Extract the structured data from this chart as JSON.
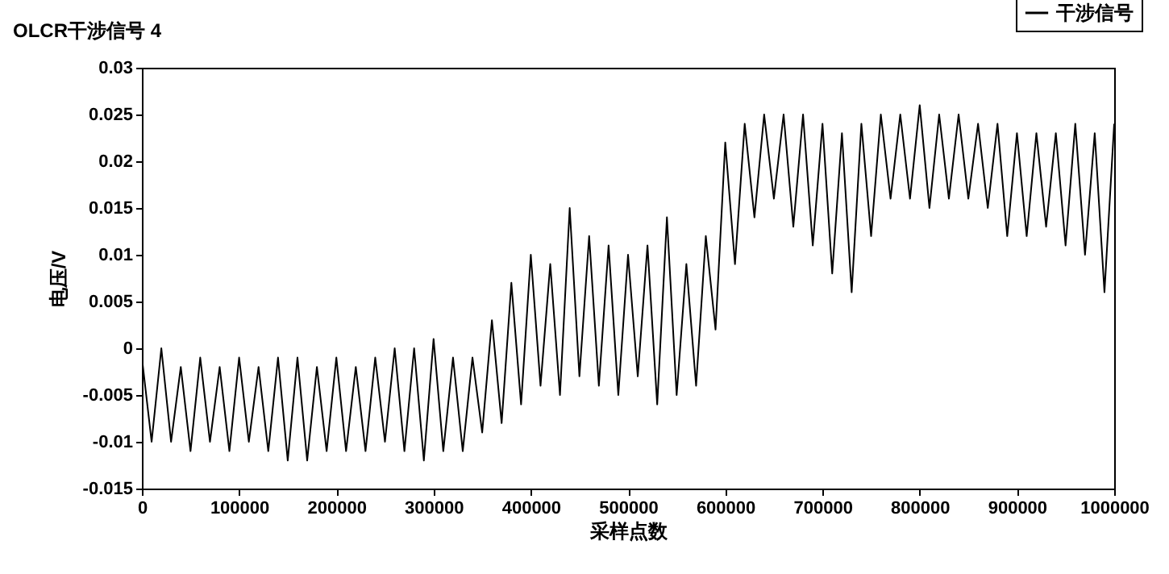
{
  "chart_data": {
    "type": "line",
    "title": "OLCR干涉信号 4",
    "xlabel": "采样点数",
    "ylabel": "电压/V",
    "x": [
      0,
      10000,
      20000,
      30000,
      40000,
      50000,
      60000,
      70000,
      80000,
      90000,
      100000,
      110000,
      120000,
      130000,
      140000,
      150000,
      160000,
      170000,
      180000,
      190000,
      200000,
      210000,
      220000,
      230000,
      240000,
      250000,
      260000,
      270000,
      280000,
      290000,
      300000,
      310000,
      320000,
      330000,
      340000,
      350000,
      360000,
      370000,
      380000,
      390000,
      400000,
      410000,
      420000,
      430000,
      440000,
      450000,
      460000,
      470000,
      480000,
      490000,
      500000,
      510000,
      520000,
      530000,
      540000,
      550000,
      560000,
      570000,
      580000,
      590000,
      600000,
      610000,
      620000,
      630000,
      640000,
      650000,
      660000,
      670000,
      680000,
      690000,
      700000,
      710000,
      720000,
      730000,
      740000,
      750000,
      760000,
      770000,
      780000,
      790000,
      800000,
      810000,
      820000,
      830000,
      840000,
      850000,
      860000,
      870000,
      880000,
      890000,
      900000,
      910000,
      920000,
      930000,
      940000,
      950000,
      960000,
      970000,
      980000,
      990000,
      1000000
    ],
    "series": [
      {
        "name": "干涉信号",
        "color": "#000000",
        "values": [
          -0.001,
          -0.01,
          0.0,
          -0.01,
          -0.002,
          -0.011,
          -0.001,
          -0.01,
          -0.002,
          -0.011,
          -0.001,
          -0.01,
          -0.002,
          -0.011,
          -0.001,
          -0.012,
          -0.001,
          -0.012,
          -0.002,
          -0.011,
          -0.001,
          -0.011,
          -0.002,
          -0.011,
          -0.001,
          -0.01,
          0.0,
          -0.011,
          0.0,
          -0.012,
          0.001,
          -0.011,
          -0.001,
          -0.011,
          -0.001,
          -0.009,
          0.003,
          -0.008,
          0.007,
          -0.006,
          0.01,
          -0.004,
          0.009,
          -0.005,
          0.015,
          -0.003,
          0.012,
          -0.004,
          0.011,
          -0.005,
          0.01,
          -0.003,
          0.011,
          -0.006,
          0.014,
          -0.005,
          0.009,
          -0.004,
          0.012,
          0.002,
          0.022,
          0.009,
          0.024,
          0.014,
          0.025,
          0.016,
          0.025,
          0.013,
          0.025,
          0.011,
          0.024,
          0.008,
          0.023,
          0.006,
          0.024,
          0.012,
          0.025,
          0.016,
          0.025,
          0.016,
          0.026,
          0.015,
          0.025,
          0.016,
          0.025,
          0.016,
          0.024,
          0.015,
          0.024,
          0.012,
          0.023,
          0.012,
          0.023,
          0.013,
          0.023,
          0.011,
          0.024,
          0.01,
          0.023,
          0.006,
          0.024
        ]
      }
    ],
    "xlim": [
      0,
      1000000
    ],
    "xticks": [
      0,
      100000,
      200000,
      300000,
      400000,
      500000,
      600000,
      700000,
      800000,
      900000,
      1000000
    ],
    "ylim": [
      -0.015,
      0.03
    ],
    "yticks": [
      -0.015,
      -0.01,
      -0.005,
      0,
      0.005,
      0.01,
      0.015,
      0.02,
      0.025,
      0.03
    ],
    "grid": false,
    "legend": "top right",
    "marker": "none",
    "line_style": "solid"
  }
}
